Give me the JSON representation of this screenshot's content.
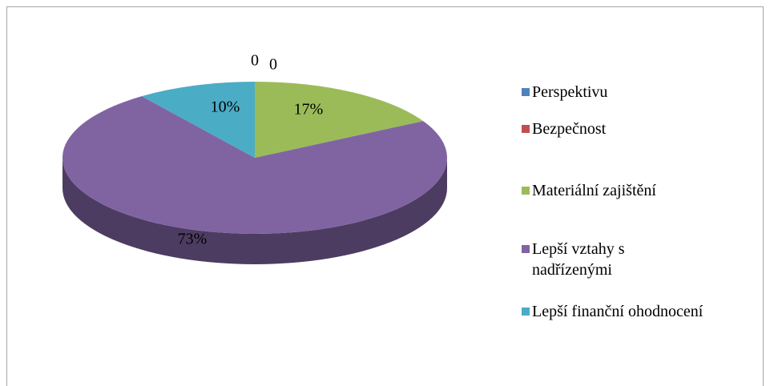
{
  "chart_data": {
    "type": "pie3d",
    "categories": [
      "Perspektivu",
      "Bezpečnost",
      "Materiální zajištění",
      "Lepší vztahy s nadřízenými",
      "Lepší finanční ohodnocení"
    ],
    "values": [
      0,
      0,
      17,
      73,
      10
    ],
    "value_labels": [
      "0",
      "0",
      "17%",
      "73%",
      "10%"
    ],
    "colors": [
      "#4f81bd",
      "#c0504d",
      "#9bbb59",
      "#8064a2",
      "#4bacc6"
    ],
    "legend": "right"
  }
}
